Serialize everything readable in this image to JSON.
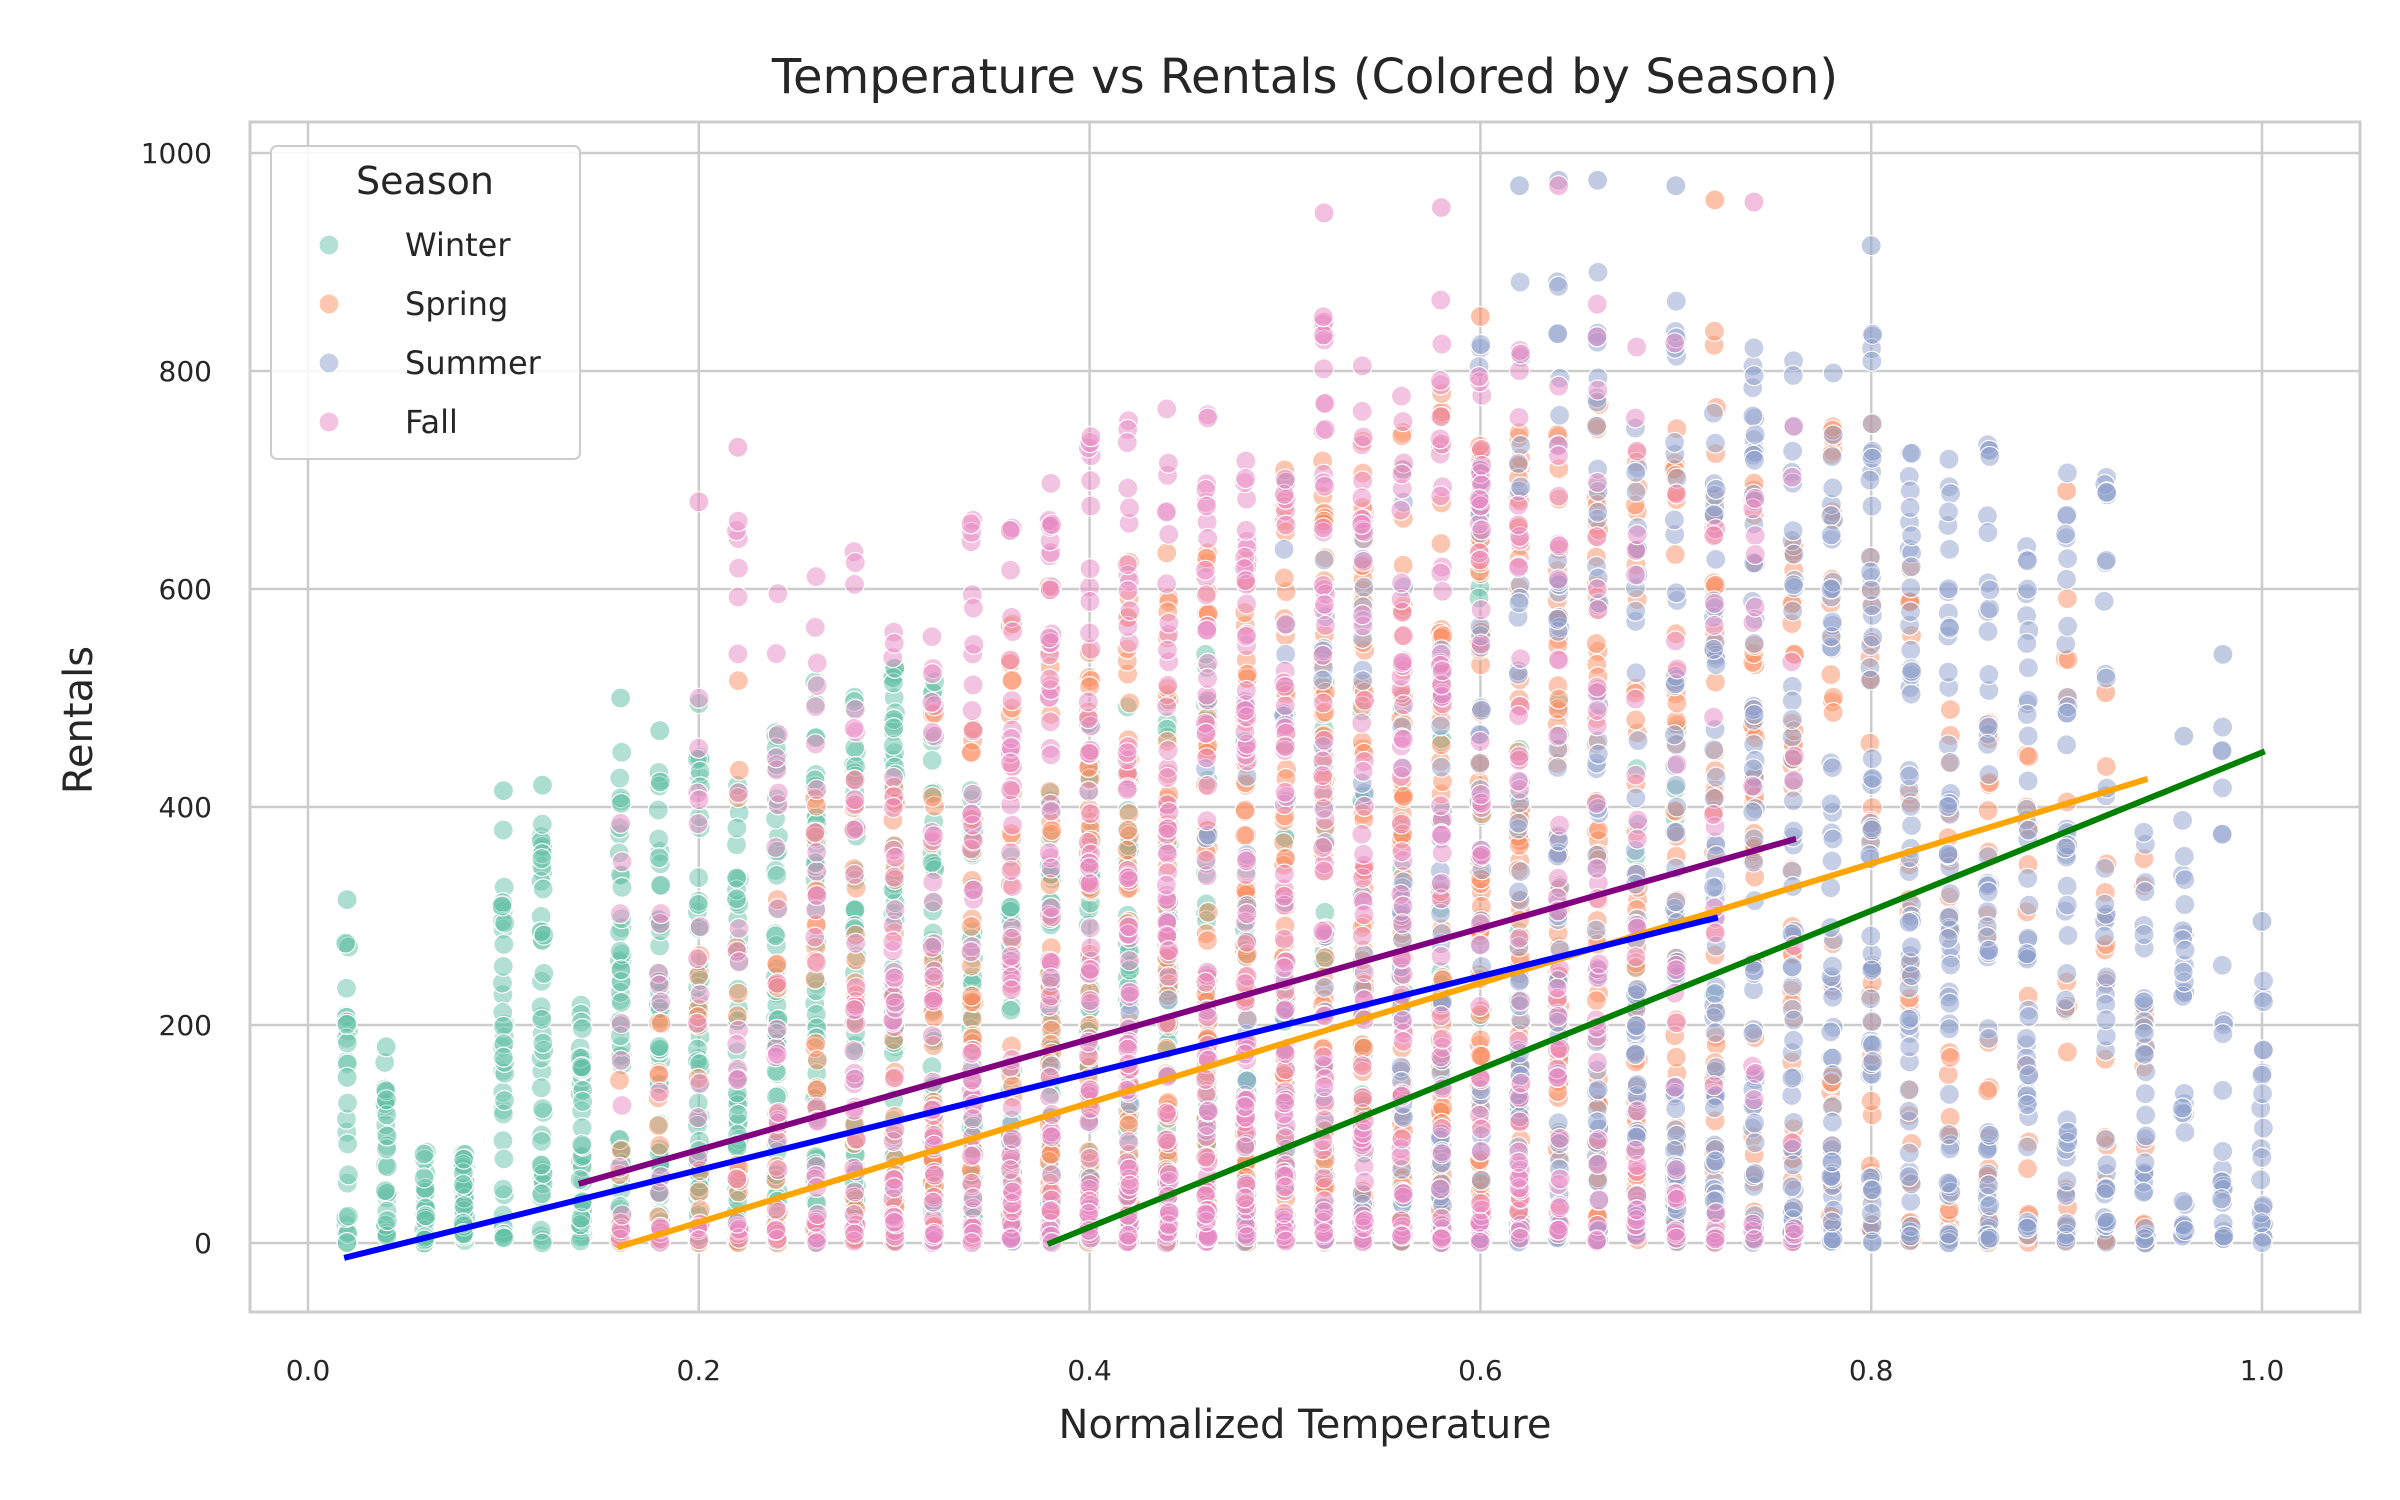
{
  "chart_data": {
    "type": "scatter",
    "title": "Temperature vs Rentals (Colored by Season)",
    "xlabel": "Normalized Temperature",
    "ylabel": "Rentals",
    "xlim": [
      -0.06,
      1.05
    ],
    "ylim": [
      -65,
      1030
    ],
    "xticks": [
      0.0,
      0.2,
      0.4,
      0.6,
      0.8,
      1.0
    ],
    "xtick_labels": [
      "0.0",
      "0.2",
      "0.4",
      "0.6",
      "0.8",
      "1.0"
    ],
    "yticks": [
      0,
      200,
      400,
      600,
      800,
      1000
    ],
    "ytick_labels": [
      "0",
      "200",
      "400",
      "600",
      "800",
      "1000"
    ],
    "grid": true,
    "legend": {
      "title": "Season",
      "placement": "top-left",
      "entries": [
        "Winter",
        "Spring",
        "Summer",
        "Fall"
      ]
    },
    "series": [
      {
        "name": "Winter",
        "color": "#66c2a5",
        "x_range": [
          0.02,
          0.72
        ],
        "density_center": 0.26,
        "x_columns": [
          0.02,
          0.04,
          0.06,
          0.08,
          0.1,
          0.12,
          0.14,
          0.16,
          0.18,
          0.2,
          0.22,
          0.24,
          0.26,
          0.28,
          0.3,
          0.32,
          0.34,
          0.36,
          0.38,
          0.4,
          0.42,
          0.44,
          0.46,
          0.48,
          0.5,
          0.52,
          0.54,
          0.56,
          0.58,
          0.6,
          0.62,
          0.64,
          0.66,
          0.68,
          0.7,
          0.72
        ],
        "y_max_per_column": [
          315,
          180,
          100,
          90,
          415,
          420,
          245,
          500,
          470,
          495,
          480,
          525,
          560,
          560,
          575,
          560,
          460,
          440,
          460,
          520,
          560,
          560,
          590,
          590,
          580,
          560,
          560,
          660,
          660,
          740,
          760,
          800,
          790,
          700,
          780,
          700
        ],
        "notable_points": [
          [
            0.02,
            315
          ],
          [
            0.02,
            152
          ],
          [
            0.04,
            180
          ],
          [
            0.1,
            415
          ],
          [
            0.12,
            420
          ],
          [
            0.16,
            500
          ],
          [
            0.18,
            470
          ],
          [
            0.2,
            495
          ]
        ]
      },
      {
        "name": "Spring",
        "color": "#fc8d62",
        "x_range": [
          0.16,
          0.94
        ],
        "density_center": 0.56,
        "x_columns": [
          0.16,
          0.18,
          0.2,
          0.22,
          0.24,
          0.26,
          0.28,
          0.3,
          0.32,
          0.34,
          0.36,
          0.38,
          0.4,
          0.42,
          0.44,
          0.46,
          0.48,
          0.5,
          0.52,
          0.54,
          0.56,
          0.58,
          0.6,
          0.62,
          0.64,
          0.66,
          0.68,
          0.7,
          0.72,
          0.74,
          0.76,
          0.78,
          0.8,
          0.82,
          0.84,
          0.86,
          0.88,
          0.9,
          0.92,
          0.94
        ],
        "y_max_per_column": [
          200,
          250,
          300,
          580,
          420,
          480,
          500,
          520,
          560,
          540,
          650,
          690,
          600,
          680,
          700,
          720,
          710,
          780,
          780,
          800,
          810,
          850,
          800,
          810,
          820,
          840,
          790,
          830,
          960,
          860,
          730,
          820,
          860,
          780,
          590,
          560,
          490,
          690,
          505,
          400
        ],
        "notable_points": [
          [
            0.72,
            957
          ],
          [
            0.6,
            850
          ],
          [
            0.92,
            505
          ],
          [
            0.9,
            690
          ]
        ]
      },
      {
        "name": "Summer",
        "color": "#8da0cb",
        "x_range": [
          0.36,
          1.0
        ],
        "density_center": 0.76,
        "x_columns": [
          0.36,
          0.38,
          0.4,
          0.42,
          0.44,
          0.46,
          0.48,
          0.5,
          0.52,
          0.54,
          0.56,
          0.58,
          0.6,
          0.62,
          0.64,
          0.66,
          0.68,
          0.7,
          0.72,
          0.74,
          0.76,
          0.78,
          0.8,
          0.82,
          0.84,
          0.86,
          0.88,
          0.9,
          0.92,
          0.94,
          0.96,
          0.98,
          1.0
        ],
        "y_max_per_column": [
          200,
          300,
          350,
          420,
          450,
          500,
          560,
          800,
          740,
          760,
          780,
          600,
          900,
          970,
          975,
          975,
          845,
          970,
          900,
          940,
          890,
          870,
          915,
          895,
          790,
          810,
          700,
          770,
          770,
          420,
          465,
          540,
          295
        ],
        "notable_points": [
          [
            0.66,
            975
          ],
          [
            0.64,
            975
          ],
          [
            0.62,
            970
          ],
          [
            0.7,
            970
          ],
          [
            0.8,
            915
          ],
          [
            0.98,
            540
          ],
          [
            1.0,
            295
          ],
          [
            0.96,
            465
          ]
        ]
      },
      {
        "name": "Fall",
        "color": "#e78ac3",
        "x_range": [
          0.16,
          0.76
        ],
        "density_center": 0.46,
        "x_columns": [
          0.16,
          0.18,
          0.2,
          0.22,
          0.24,
          0.26,
          0.28,
          0.3,
          0.32,
          0.34,
          0.36,
          0.38,
          0.4,
          0.42,
          0.44,
          0.46,
          0.48,
          0.5,
          0.52,
          0.54,
          0.56,
          0.58,
          0.6,
          0.62,
          0.64,
          0.66,
          0.68,
          0.7,
          0.72,
          0.74,
          0.76
        ],
        "y_max_per_column": [
          385,
          420,
          680,
          730,
          690,
          690,
          690,
          670,
          710,
          725,
          730,
          800,
          815,
          835,
          835,
          835,
          790,
          840,
          945,
          890,
          855,
          950,
          890,
          920,
          970,
          965,
          940,
          900,
          880,
          955,
          880
        ],
        "notable_points": [
          [
            0.52,
            945
          ],
          [
            0.58,
            950
          ],
          [
            0.64,
            970
          ],
          [
            0.74,
            955
          ],
          [
            0.2,
            680
          ],
          [
            0.22,
            730
          ],
          [
            0.16,
            385
          ]
        ]
      }
    ],
    "trend_lines": [
      {
        "color": "#008000",
        "x": [
          0.38,
          1.0
        ],
        "y": [
          0,
          450
        ]
      },
      {
        "color": "#ffa500",
        "x": [
          0.16,
          0.94
        ],
        "y": [
          -3,
          425
        ]
      },
      {
        "color": "#0000ff",
        "x": [
          0.02,
          0.72
        ],
        "y": [
          -13,
          298
        ]
      },
      {
        "color": "#800080",
        "x": [
          0.14,
          0.76
        ],
        "y": [
          55,
          370
        ]
      }
    ]
  }
}
